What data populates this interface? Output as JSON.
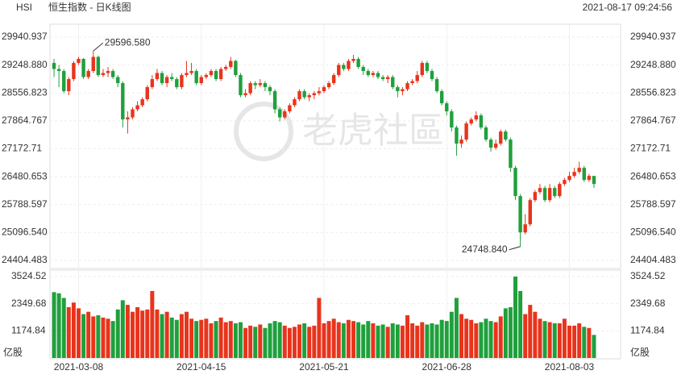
{
  "chart_data": {
    "type": "candlestick",
    "title": "HSI",
    "subtitle": "恒生指数 - 日K线图",
    "timestamp": "2021-08-17 09:24:56",
    "watermark": "老虎社區",
    "categories": [
      null,
      null,
      null,
      null,
      null,
      "2021-03-08",
      null,
      null,
      null,
      null,
      null,
      null,
      null,
      null,
      null,
      null,
      null,
      null,
      null,
      null,
      null,
      null,
      null,
      null,
      null,
      null,
      null,
      null,
      null,
      null,
      "2021-04-15",
      null,
      null,
      null,
      null,
      null,
      null,
      null,
      null,
      null,
      null,
      null,
      null,
      null,
      null,
      null,
      null,
      null,
      null,
      null,
      null,
      null,
      null,
      null,
      null,
      "2021-05-21",
      null,
      null,
      null,
      null,
      null,
      null,
      null,
      null,
      null,
      null,
      null,
      null,
      null,
      null,
      null,
      null,
      null,
      null,
      null,
      null,
      null,
      null,
      null,
      null,
      "2021-06-28",
      null,
      null,
      null,
      null,
      null,
      null,
      null,
      null,
      null,
      null,
      null,
      null,
      null,
      null,
      null,
      null,
      null,
      null,
      null,
      null,
      null,
      null,
      null,
      null,
      "2021-08-03",
      null,
      null,
      null,
      null,
      null
    ],
    "candles": [
      [
        29300,
        29400,
        28950,
        29150
      ],
      [
        29150,
        29250,
        28700,
        29100
      ],
      [
        29100,
        29150,
        28550,
        28600
      ],
      [
        28600,
        28950,
        28500,
        28900
      ],
      [
        28900,
        29350,
        28850,
        29300
      ],
      [
        29300,
        29450,
        29250,
        29400
      ],
      [
        29400,
        29420,
        28900,
        28950
      ],
      [
        28950,
        29150,
        28900,
        29100
      ],
      [
        29100,
        29596.58,
        29050,
        29450
      ],
      [
        29450,
        29480,
        28950,
        29000
      ],
      [
        29000,
        29150,
        28950,
        29050
      ],
      [
        29050,
        29200,
        28950,
        29100
      ],
      [
        29100,
        29150,
        28900,
        28950
      ],
      [
        28950,
        29000,
        28700,
        28800
      ],
      [
        28800,
        28850,
        27700,
        27900
      ],
      [
        27900,
        28100,
        27550,
        27950
      ],
      [
        27950,
        28200,
        27900,
        28150
      ],
      [
        28150,
        28350,
        28100,
        28250
      ],
      [
        28250,
        28450,
        28200,
        28400
      ],
      [
        28400,
        28750,
        28350,
        28700
      ],
      [
        28700,
        29000,
        28650,
        28900
      ],
      [
        28900,
        29150,
        28850,
        29050
      ],
      [
        29050,
        29100,
        28750,
        28800
      ],
      [
        28800,
        29000,
        28700,
        28950
      ],
      [
        28950,
        29050,
        28850,
        28900
      ],
      [
        28900,
        28950,
        28650,
        28700
      ],
      [
        28700,
        29050,
        28650,
        29000
      ],
      [
        29000,
        29350,
        28950,
        29050
      ],
      [
        29050,
        29300,
        29000,
        29100
      ],
      [
        29100,
        29150,
        28750,
        28800
      ],
      [
        28800,
        29000,
        28750,
        28950
      ],
      [
        28950,
        29050,
        28900,
        29000
      ],
      [
        29000,
        29150,
        28950,
        29100
      ],
      [
        29100,
        29150,
        28850,
        28900
      ],
      [
        28900,
        29200,
        28850,
        29150
      ],
      [
        29150,
        29250,
        29100,
        29200
      ],
      [
        29200,
        29450,
        29150,
        29350
      ],
      [
        29350,
        29380,
        28950,
        29000
      ],
      [
        29000,
        29050,
        28450,
        28500
      ],
      [
        28500,
        28650,
        28450,
        28550
      ],
      [
        28550,
        28850,
        28500,
        28800
      ],
      [
        28800,
        28850,
        28650,
        28750
      ],
      [
        28750,
        28900,
        28700,
        28800
      ],
      [
        28800,
        28850,
        28600,
        28700
      ],
      [
        28700,
        28750,
        28500,
        28600
      ],
      [
        28600,
        28650,
        28050,
        28150
      ],
      [
        28150,
        28200,
        27850,
        27950
      ],
      [
        27950,
        28150,
        27900,
        28100
      ],
      [
        28100,
        28300,
        28050,
        28250
      ],
      [
        28250,
        28450,
        28200,
        28400
      ],
      [
        28400,
        28650,
        28350,
        28600
      ],
      [
        28600,
        28650,
        28400,
        28450
      ],
      [
        28450,
        28550,
        28350,
        28500
      ],
      [
        28500,
        28600,
        28400,
        28550
      ],
      [
        28550,
        28700,
        28500,
        28600
      ],
      [
        28600,
        28750,
        28550,
        28700
      ],
      [
        28700,
        28850,
        28650,
        28800
      ],
      [
        28800,
        29050,
        28750,
        29000
      ],
      [
        29000,
        29300,
        28950,
        29250
      ],
      [
        29250,
        29300,
        29100,
        29150
      ],
      [
        29150,
        29400,
        29100,
        29350
      ],
      [
        29350,
        29500,
        29300,
        29400
      ],
      [
        29400,
        29450,
        29150,
        29200
      ],
      [
        29200,
        29250,
        29000,
        29100
      ],
      [
        29100,
        29150,
        28950,
        29000
      ],
      [
        29000,
        29100,
        28950,
        29050
      ],
      [
        29050,
        29100,
        28900,
        28950
      ],
      [
        28950,
        29000,
        28850,
        28900
      ],
      [
        28900,
        29000,
        28800,
        28950
      ],
      [
        28950,
        29000,
        28650,
        28700
      ],
      [
        28700,
        28750,
        28450,
        28600
      ],
      [
        28600,
        28700,
        28500,
        28650
      ],
      [
        28650,
        28850,
        28600,
        28800
      ],
      [
        28800,
        28900,
        28750,
        28850
      ],
      [
        28850,
        29100,
        28800,
        29000
      ],
      [
        29000,
        29350,
        28950,
        29300
      ],
      [
        29300,
        29350,
        29050,
        29100
      ],
      [
        29100,
        29150,
        28850,
        28900
      ],
      [
        28900,
        28950,
        28550,
        28600
      ],
      [
        28600,
        28650,
        28250,
        28300
      ],
      [
        28300,
        28350,
        28000,
        28100
      ],
      [
        28100,
        28150,
        27600,
        27700
      ],
      [
        27700,
        27750,
        27000,
        27300
      ],
      [
        27300,
        27500,
        27200,
        27400
      ],
      [
        27400,
        27850,
        27350,
        27800
      ],
      [
        27800,
        27950,
        27750,
        27900
      ],
      [
        27900,
        28100,
        27850,
        28000
      ],
      [
        28000,
        28050,
        27650,
        27700
      ],
      [
        27700,
        27750,
        27350,
        27400
      ],
      [
        27400,
        27450,
        27100,
        27200
      ],
      [
        27200,
        27400,
        27150,
        27300
      ],
      [
        27300,
        27650,
        27250,
        27600
      ],
      [
        27600,
        27650,
        27350,
        27400
      ],
      [
        27400,
        27450,
        26600,
        26700
      ],
      [
        26700,
        26750,
        25900,
        26000
      ],
      [
        26000,
        26050,
        24748.84,
        25100
      ],
      [
        25100,
        25550,
        25050,
        25300
      ],
      [
        25300,
        25950,
        25250,
        25900
      ],
      [
        25900,
        26150,
        25850,
        26100
      ],
      [
        26100,
        26300,
        26050,
        26200
      ],
      [
        26200,
        26250,
        25850,
        25900
      ],
      [
        25900,
        26300,
        25850,
        26200
      ],
      [
        26200,
        26250,
        25950,
        26000
      ],
      [
        26000,
        26350,
        25950,
        26300
      ],
      [
        26300,
        26450,
        26250,
        26400
      ],
      [
        26400,
        26600,
        26350,
        26500
      ],
      [
        26500,
        26700,
        26450,
        26600
      ],
      [
        26600,
        26850,
        26550,
        26700
      ],
      [
        26700,
        26750,
        26350,
        26400
      ],
      [
        26400,
        26550,
        26350,
        26500
      ],
      [
        26500,
        26450,
        26200,
        26300
      ]
    ],
    "volume": [
      2850,
      2800,
      2600,
      2200,
      2400,
      2150,
      1900,
      2000,
      1800,
      1850,
      1750,
      1700,
      1600,
      2100,
      2500,
      2300,
      2000,
      2200,
      2050,
      2100,
      2900,
      2100,
      1900,
      2000,
      1750,
      1650,
      1900,
      2000,
      1700,
      1600,
      1650,
      1700,
      1500,
      1600,
      1750,
      1550,
      1600,
      1500,
      1550,
      1300,
      1400,
      1350,
      1450,
      1300,
      1500,
      1600,
      1550,
      1400,
      1300,
      1350,
      1450,
      1500,
      1350,
      1400,
      2600,
      1500,
      1600,
      1700,
      1550,
      1500,
      1650,
      1600,
      1550,
      1450,
      1600,
      1500,
      1400,
      1450,
      1350,
      1500,
      1450,
      1400,
      1850,
      1500,
      1400,
      1550,
      1450,
      1500,
      1450,
      1650,
      1600,
      2000,
      2600,
      1900,
      1700,
      1650,
      1500,
      1550,
      1700,
      1600,
      1550,
      1800,
      2150,
      2200,
      3524,
      2900,
      1900,
      2300,
      2000,
      1700,
      1600,
      1550,
      1500,
      1500,
      1700,
      1400,
      1400,
      1500,
      1350,
      1300,
      1000
    ],
    "volume_unit": "亿股",
    "ylim": [
      24404.483,
      29940.937
    ],
    "yticks": [
      24404.483,
      {
        "value": 25096.54,
        "label": "25096.540"
      },
      25788.597,
      26480.653,
      27172.71,
      27864.767,
      28556.823,
      {
        "value": 29248.88,
        "label": "29248.880"
      },
      29940.937
    ],
    "vol_ylim": [
      0,
      3524.52
    ],
    "vol_yticks": [
      1174.84,
      2349.68,
      3524.52
    ],
    "colors": {
      "up": "#e8341c",
      "down": "#1fa03c"
    },
    "grid": true,
    "annotations": [
      "29596.580",
      "24748.840"
    ]
  }
}
